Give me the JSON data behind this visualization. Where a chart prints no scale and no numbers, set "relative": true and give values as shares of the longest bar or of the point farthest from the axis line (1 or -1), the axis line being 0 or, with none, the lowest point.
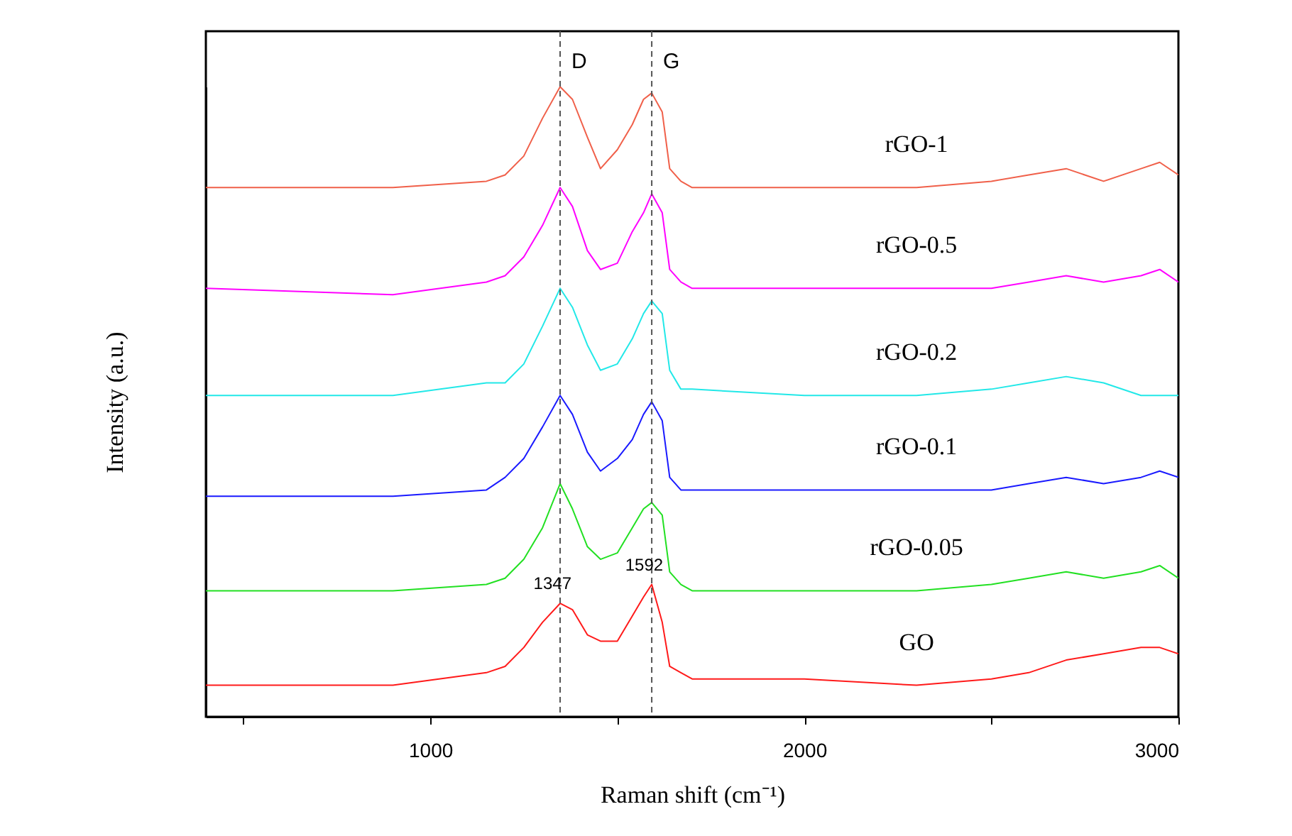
{
  "chart_data": {
    "type": "line",
    "relative": true,
    "xlabel": "Raman shift (cm⁻¹)",
    "ylabel": "Intensity (a.u.)",
    "x": [
      400,
      900,
      1150,
      1200,
      1250,
      1300,
      1347,
      1380,
      1420,
      1455,
      1500,
      1540,
      1570,
      1592,
      1620,
      1640,
      1670,
      1700,
      2000,
      2300,
      2500,
      2600,
      2700,
      2800,
      2900,
      2950,
      3000
    ],
    "xlim": [
      400,
      3000
    ],
    "xticks": [
      {
        "value": 500,
        "label": null
      },
      1000,
      {
        "value": 1500,
        "label": null
      },
      2000,
      {
        "value": 2500,
        "label": null
      },
      3000
    ],
    "line_style": "solid",
    "series": [
      {
        "name": "rGO-1",
        "color": "#f0604a",
        "values": [
          0.84,
          0.84,
          0.85,
          0.86,
          0.89,
          0.95,
          1.0,
          0.98,
          0.92,
          0.87,
          0.9,
          0.94,
          0.98,
          0.99,
          0.96,
          0.87,
          0.85,
          0.84,
          0.84,
          0.84,
          0.85,
          0.86,
          0.87,
          0.85,
          0.87,
          0.88,
          0.86
        ]
      },
      {
        "name": "rGO-0.5",
        "color": "#ff00ff",
        "values": [
          0.68,
          0.67,
          0.69,
          0.7,
          0.73,
          0.78,
          0.84,
          0.81,
          0.74,
          0.71,
          0.72,
          0.77,
          0.8,
          0.83,
          0.8,
          0.71,
          0.69,
          0.68,
          0.68,
          0.68,
          0.68,
          0.69,
          0.7,
          0.69,
          0.7,
          0.71,
          0.69
        ]
      },
      {
        "name": "rGO-0.2",
        "color": "#22e8e8",
        "values": [
          0.51,
          0.51,
          0.53,
          0.53,
          0.56,
          0.62,
          0.68,
          0.65,
          0.59,
          0.55,
          0.56,
          0.6,
          0.64,
          0.66,
          0.64,
          0.55,
          0.52,
          0.52,
          0.51,
          0.51,
          0.52,
          0.53,
          0.54,
          0.53,
          0.51,
          0.51,
          0.51
        ]
      },
      {
        "name": "rGO-0.1",
        "color": "#1a1aff",
        "values": [
          0.35,
          0.35,
          0.36,
          0.38,
          0.41,
          0.46,
          0.51,
          0.48,
          0.42,
          0.39,
          0.41,
          0.44,
          0.48,
          0.5,
          0.47,
          0.38,
          0.36,
          0.36,
          0.36,
          0.36,
          0.36,
          0.37,
          0.38,
          0.37,
          0.38,
          0.39,
          0.38
        ]
      },
      {
        "name": "rGO-0.05",
        "color": "#22e022",
        "values": [
          0.2,
          0.2,
          0.21,
          0.22,
          0.25,
          0.3,
          0.37,
          0.33,
          0.27,
          0.25,
          0.26,
          0.3,
          0.33,
          0.34,
          0.32,
          0.23,
          0.21,
          0.2,
          0.2,
          0.2,
          0.21,
          0.22,
          0.23,
          0.22,
          0.23,
          0.24,
          0.22
        ]
      },
      {
        "name": "GO",
        "color": "#ff1a1a",
        "values": [
          0.05,
          0.05,
          0.07,
          0.08,
          0.11,
          0.15,
          0.18,
          0.17,
          0.13,
          0.12,
          0.12,
          0.16,
          0.19,
          0.21,
          0.15,
          0.08,
          0.07,
          0.06,
          0.06,
          0.05,
          0.06,
          0.07,
          0.09,
          0.1,
          0.11,
          0.11,
          0.1
        ]
      }
    ],
    "ref_lines": [
      {
        "axis": "x",
        "value": 1347,
        "label": "D",
        "color": "#555555",
        "line_style": "dashed"
      },
      {
        "axis": "x",
        "value": 1592,
        "label": "G",
        "color": "#555555",
        "line_style": "dashed"
      }
    ],
    "annotations": [
      {
        "text": "1347",
        "x": 1347,
        "y": 0.18
      },
      {
        "text": "1592",
        "x": 1592,
        "y": 0.21
      }
    ]
  }
}
